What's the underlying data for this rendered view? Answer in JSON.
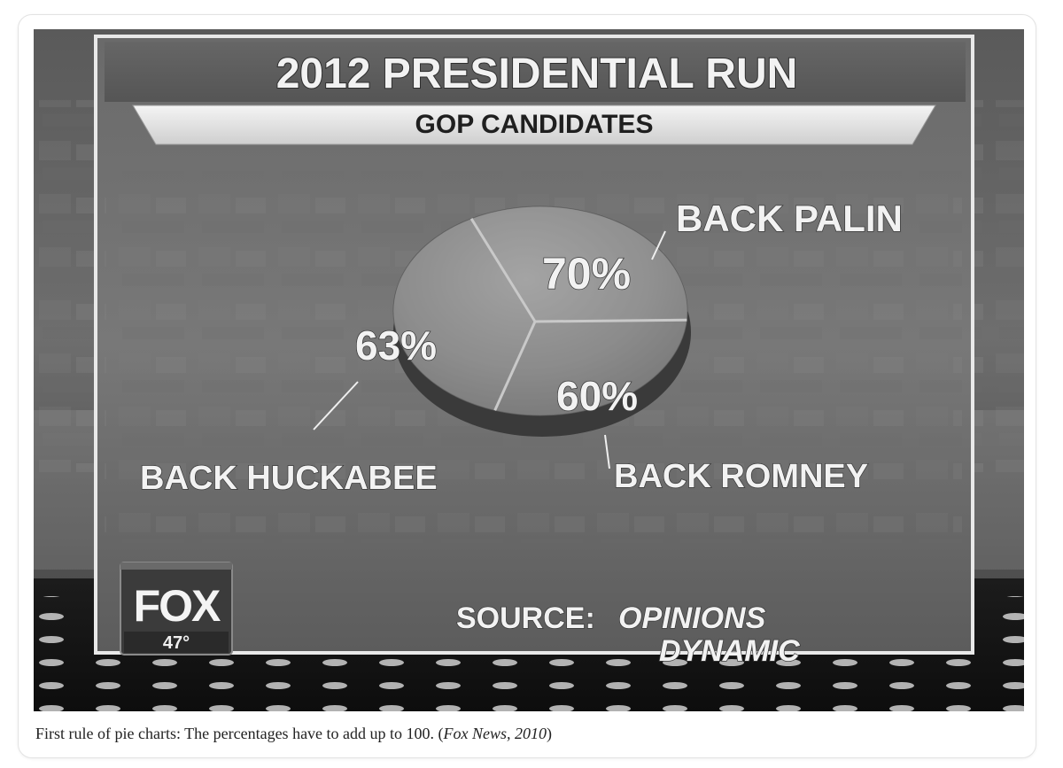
{
  "caption": {
    "text": "First rule of pie charts: The percentages have to add up to 100. (",
    "source": "Fox News, 2010",
    "close": ")"
  },
  "broadcast": {
    "logo": "FOX",
    "temperature": "47°",
    "source_prefix": "SOURCE:",
    "source_line1": "OPINIONS",
    "source_line2": "DYNAMIC"
  },
  "chart_data": {
    "type": "pie",
    "title": "2012 PRESIDENTIAL RUN",
    "subtitle": "GOP CANDIDATES",
    "slices": [
      {
        "label": "BACK PALIN",
        "value": 70,
        "value_label": "70%"
      },
      {
        "label": "BACK ROMNEY",
        "value": 60,
        "value_label": "60%"
      },
      {
        "label": "BACK HUCKABEE",
        "value": 63,
        "value_label": "63%"
      }
    ],
    "colors": {
      "slice": "#8f8f8f",
      "edge": "#3c3c3c",
      "text": "#f2f2f2"
    }
  }
}
